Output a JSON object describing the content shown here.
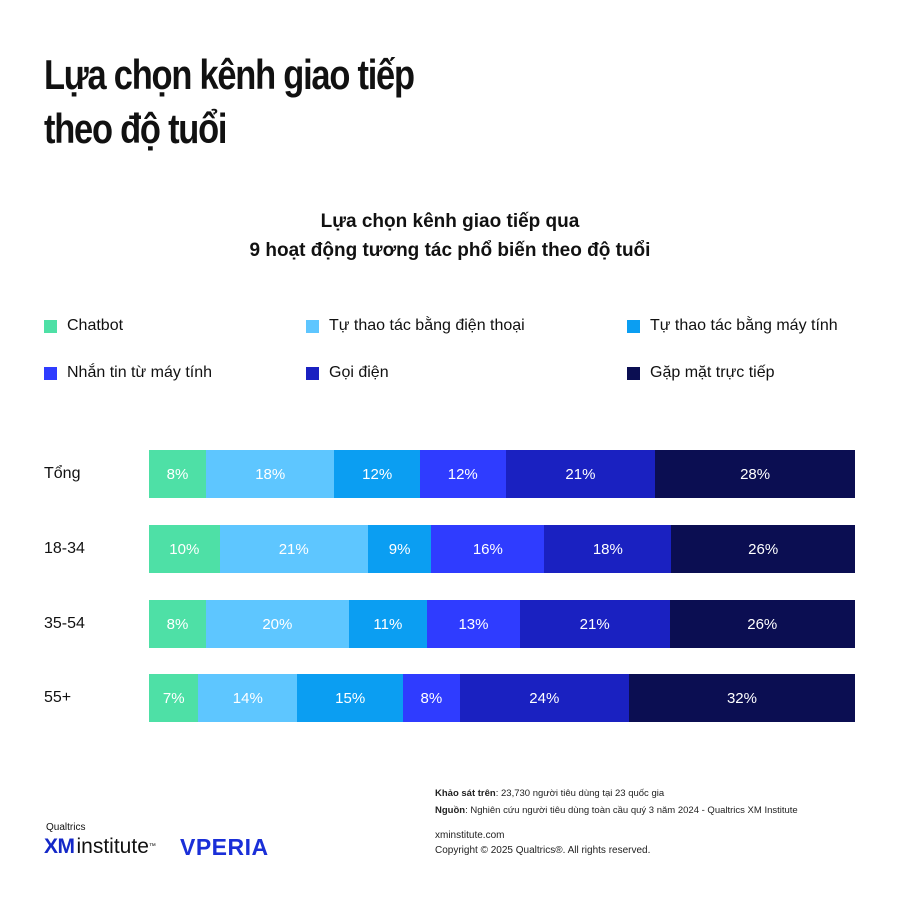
{
  "header": {
    "title_line1": "Lựa chọn kênh giao tiếp",
    "title_line2": "theo độ tuổi"
  },
  "chart_data": {
    "type": "bar",
    "orientation": "horizontal",
    "stacked": true,
    "title_line1": "Lựa chọn kênh giao tiếp qua",
    "title_line2": "9 hoạt động tương tác phổ biến theo độ tuổi",
    "categories": [
      "Tổng",
      "18-34",
      "35-54",
      "55+"
    ],
    "series": [
      {
        "name": "Chatbot",
        "color": "#4ee0a6",
        "values": [
          8,
          10,
          8,
          7
        ]
      },
      {
        "name": "Tự thao tác bằng điện thoại",
        "color": "#5ec6ff",
        "values": [
          18,
          21,
          20,
          14
        ]
      },
      {
        "name": "Tự thao tác bằng máy tính",
        "color": "#0b9ef2",
        "values": [
          12,
          9,
          11,
          15
        ]
      },
      {
        "name": "Nhắn tin từ máy tính",
        "color": "#2f3cff",
        "values": [
          12,
          16,
          13,
          8
        ]
      },
      {
        "name": "Gọi điện",
        "color": "#1a21c1",
        "values": [
          21,
          18,
          21,
          24
        ]
      },
      {
        "name": "Gặp mặt trực tiếp",
        "color": "#0b0e52",
        "values": [
          28,
          26,
          26,
          32
        ]
      }
    ],
    "value_suffix": "%",
    "legend_position": "top"
  },
  "footer": {
    "survey_label": "Khảo sát trên",
    "survey_text": ": 23,730 người tiêu dùng tại 23 quốc gia",
    "source_label": "Nguồn",
    "source_text": ": Nghiên cứu người tiêu dùng toàn cầu quý 3 năm 2024 - Qualtrics XM Institute",
    "site": "xminstitute.com",
    "copyright": "Copyright © 2025 Qualtrics®. All rights reserved."
  },
  "logos": {
    "qualtrics": "Qualtrics",
    "xm": "XM",
    "institute": "institute",
    "tm": "™",
    "vperia": "VPERIA"
  }
}
